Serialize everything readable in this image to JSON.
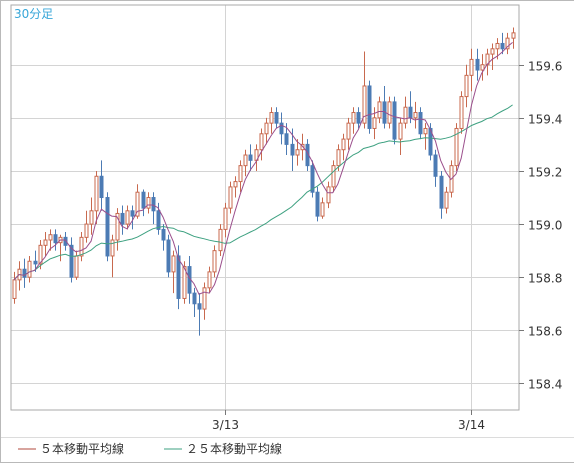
{
  "chart_data": {
    "type": "candlestick",
    "timeframe_label": "30分足",
    "ylim": [
      158.3,
      159.75
    ],
    "y_ticks": [
      "158.4",
      "158.6",
      "158.8",
      "159.0",
      "159.2",
      "159.4",
      "159.6"
    ],
    "x_ticks": [
      {
        "index": 41,
        "label": "3/13"
      },
      {
        "index": 89,
        "label": "3/14"
      }
    ],
    "grid": true,
    "colors": {
      "up": "#c8694e",
      "down": "#4c7bb4",
      "ma5": "#9b4f8c",
      "ma25": "#3ea181",
      "grid": "#d4d4d4",
      "axis_text": "#333333",
      "label": "#37a6d8"
    },
    "legend": [
      {
        "label": "５本移動平均線",
        "color": "#b24a3c"
      },
      {
        "label": "２５本移動平均線",
        "color": "#3ea181"
      }
    ],
    "candles": [
      [
        158.72,
        158.82,
        158.7,
        158.79
      ],
      [
        158.79,
        158.86,
        158.75,
        158.83
      ],
      [
        158.83,
        158.87,
        158.76,
        158.8
      ],
      [
        158.8,
        158.88,
        158.78,
        158.86
      ],
      [
        158.86,
        158.9,
        158.82,
        158.85
      ],
      [
        158.85,
        158.94,
        158.83,
        158.92
      ],
      [
        158.92,
        158.97,
        158.88,
        158.94
      ],
      [
        158.94,
        158.98,
        158.9,
        158.96
      ],
      [
        158.96,
        158.98,
        158.9,
        158.93
      ],
      [
        158.93,
        158.96,
        158.86,
        158.95
      ],
      [
        158.95,
        158.97,
        158.9,
        158.92
      ],
      [
        158.92,
        158.95,
        158.78,
        158.8
      ],
      [
        158.8,
        158.9,
        158.79,
        158.88
      ],
      [
        158.88,
        158.97,
        158.86,
        158.95
      ],
      [
        158.95,
        159.05,
        158.93,
        159.0
      ],
      [
        159.0,
        159.1,
        158.96,
        159.05
      ],
      [
        159.05,
        159.2,
        159.0,
        159.18
      ],
      [
        159.18,
        159.24,
        159.05,
        159.1
      ],
      [
        159.1,
        159.12,
        158.86,
        158.88
      ],
      [
        158.88,
        158.96,
        158.8,
        158.94
      ],
      [
        158.94,
        159.06,
        158.9,
        159.04
      ],
      [
        159.04,
        159.07,
        158.96,
        159.0
      ],
      [
        159.0,
        159.07,
        158.98,
        159.05
      ],
      [
        159.05,
        159.07,
        158.98,
        159.03
      ],
      [
        159.03,
        159.15,
        159.02,
        159.12
      ],
      [
        159.12,
        159.13,
        159.03,
        159.06
      ],
      [
        159.06,
        159.12,
        159.04,
        159.1
      ],
      [
        159.1,
        159.12,
        159.0,
        159.05
      ],
      [
        159.05,
        159.08,
        158.96,
        158.98
      ],
      [
        158.98,
        159.0,
        158.9,
        158.94
      ],
      [
        158.94,
        158.96,
        158.8,
        158.82
      ],
      [
        158.82,
        158.9,
        158.74,
        158.88
      ],
      [
        158.88,
        158.92,
        158.68,
        158.72
      ],
      [
        158.72,
        158.86,
        158.7,
        158.84
      ],
      [
        158.84,
        158.88,
        158.7,
        158.74
      ],
      [
        158.74,
        158.76,
        158.65,
        158.7
      ],
      [
        158.7,
        158.74,
        158.58,
        158.68
      ],
      [
        158.68,
        158.78,
        158.64,
        158.76
      ],
      [
        158.76,
        158.84,
        158.74,
        158.82
      ],
      [
        158.82,
        158.92,
        158.8,
        158.9
      ],
      [
        158.9,
        159.0,
        158.88,
        158.98
      ],
      [
        158.98,
        159.08,
        158.95,
        159.06
      ],
      [
        159.06,
        159.16,
        159.04,
        159.14
      ],
      [
        159.14,
        159.18,
        159.1,
        159.16
      ],
      [
        159.16,
        159.24,
        159.12,
        159.22
      ],
      [
        159.22,
        159.28,
        159.18,
        159.26
      ],
      [
        159.26,
        159.3,
        159.2,
        159.24
      ],
      [
        159.24,
        159.3,
        159.2,
        159.28
      ],
      [
        159.28,
        159.36,
        159.24,
        159.34
      ],
      [
        159.34,
        159.4,
        159.3,
        159.38
      ],
      [
        159.38,
        159.44,
        159.34,
        159.42
      ],
      [
        159.42,
        159.44,
        159.36,
        159.38
      ],
      [
        159.38,
        159.42,
        159.3,
        159.34
      ],
      [
        159.34,
        159.38,
        159.26,
        159.3
      ],
      [
        159.3,
        159.36,
        159.2,
        159.26
      ],
      [
        159.26,
        159.32,
        159.22,
        159.28
      ],
      [
        159.28,
        159.34,
        159.24,
        159.3
      ],
      [
        159.3,
        159.32,
        159.2,
        159.22
      ],
      [
        159.22,
        159.24,
        159.1,
        159.12
      ],
      [
        159.12,
        159.14,
        159.01,
        159.03
      ],
      [
        159.03,
        159.1,
        159.02,
        159.08
      ],
      [
        159.08,
        159.16,
        159.06,
        159.14
      ],
      [
        159.14,
        159.24,
        159.12,
        159.22
      ],
      [
        159.22,
        159.3,
        159.2,
        159.28
      ],
      [
        159.28,
        159.34,
        159.24,
        159.32
      ],
      [
        159.32,
        159.4,
        159.28,
        159.38
      ],
      [
        159.38,
        159.44,
        159.34,
        159.42
      ],
      [
        159.42,
        159.44,
        159.36,
        159.38
      ],
      [
        159.38,
        159.65,
        159.36,
        159.52
      ],
      [
        159.52,
        159.54,
        159.34,
        159.36
      ],
      [
        159.36,
        159.44,
        159.32,
        159.4
      ],
      [
        159.4,
        159.48,
        159.38,
        159.46
      ],
      [
        159.46,
        159.52,
        159.36,
        159.38
      ],
      [
        159.38,
        159.48,
        159.36,
        159.46
      ],
      [
        159.46,
        159.48,
        159.3,
        159.32
      ],
      [
        159.32,
        159.4,
        159.26,
        159.38
      ],
      [
        159.38,
        159.48,
        159.36,
        159.44
      ],
      [
        159.44,
        159.5,
        159.38,
        159.4
      ],
      [
        159.4,
        159.46,
        159.36,
        159.42
      ],
      [
        159.42,
        159.44,
        159.32,
        159.34
      ],
      [
        159.34,
        159.38,
        159.28,
        159.36
      ],
      [
        159.36,
        159.38,
        159.24,
        159.26
      ],
      [
        159.26,
        159.28,
        159.14,
        159.18
      ],
      [
        159.18,
        159.2,
        159.02,
        159.06
      ],
      [
        159.06,
        159.14,
        159.04,
        159.12
      ],
      [
        159.12,
        159.24,
        159.1,
        159.22
      ],
      [
        159.22,
        159.38,
        159.2,
        159.36
      ],
      [
        159.36,
        159.5,
        159.34,
        159.48
      ],
      [
        159.48,
        159.6,
        159.44,
        159.56
      ],
      [
        159.56,
        159.66,
        159.5,
        159.62
      ],
      [
        159.62,
        159.66,
        159.54,
        159.58
      ],
      [
        159.58,
        159.64,
        159.54,
        159.6
      ],
      [
        159.6,
        159.66,
        159.56,
        159.64
      ],
      [
        159.64,
        159.68,
        159.58,
        159.66
      ],
      [
        159.66,
        159.7,
        159.62,
        159.68
      ],
      [
        159.68,
        159.72,
        159.64,
        159.66
      ],
      [
        159.66,
        159.72,
        159.64,
        159.7
      ],
      [
        159.7,
        159.74,
        159.66,
        159.72
      ]
    ]
  }
}
